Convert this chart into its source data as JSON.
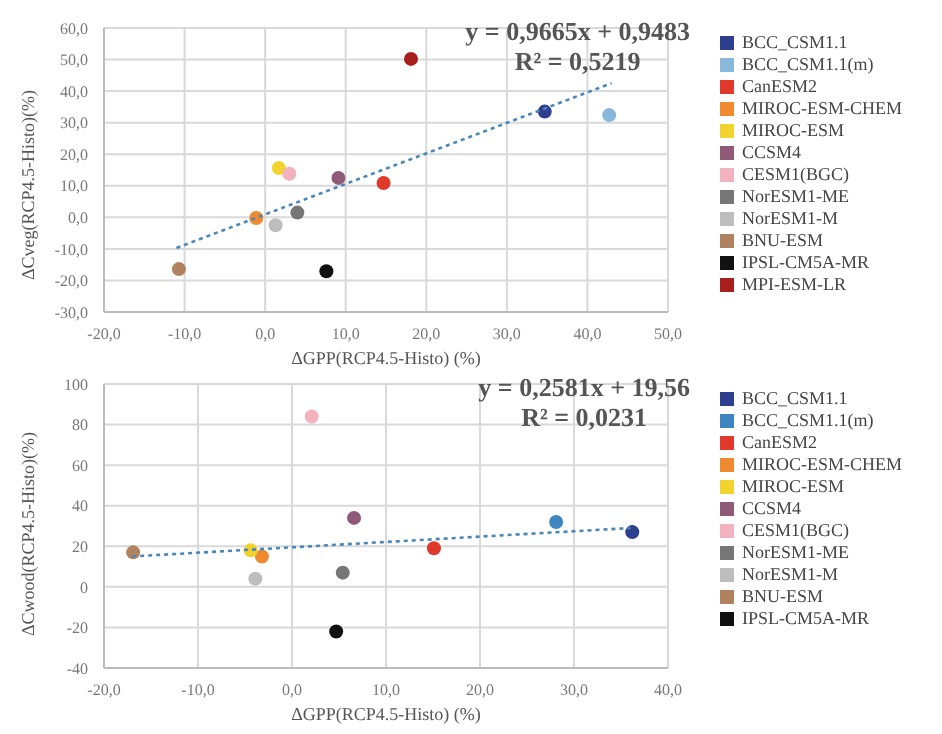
{
  "chart_data": [
    {
      "type": "scatter",
      "xlabel": "ΔGPP(RCP4.5-Histo) (%)",
      "ylabel": "ΔCveg(RCP4.5-Histo)(%)",
      "annotations": [
        "y = 0,9665x + 0,9483",
        "R² = 0,5219"
      ],
      "xlim": [
        -20,
        50
      ],
      "xticks": [
        {
          "value": -20,
          "label": "-20,0"
        },
        {
          "value": -10,
          "label": "-10,0"
        },
        {
          "value": 0,
          "label": "0,0"
        },
        {
          "value": 10,
          "label": "10,0"
        },
        {
          "value": 20,
          "label": "20,0"
        },
        {
          "value": 30,
          "label": "30,0"
        },
        {
          "value": 40,
          "label": "40,0"
        },
        {
          "value": 50,
          "label": "50,0"
        }
      ],
      "ylim": [
        -30,
        60
      ],
      "yticks": [
        {
          "value": -30,
          "label": "-30,0"
        },
        {
          "value": -20,
          "label": "-20,0"
        },
        {
          "value": -10,
          "label": "-10,0"
        },
        {
          "value": 0,
          "label": "0,0"
        },
        {
          "value": 10,
          "label": "10,0"
        },
        {
          "value": 20,
          "label": "20,0"
        },
        {
          "value": 30,
          "label": "30,0"
        },
        {
          "value": 40,
          "label": "40,0"
        },
        {
          "value": 50,
          "label": "50,0"
        },
        {
          "value": 60,
          "label": "60,0"
        }
      ],
      "grid": true,
      "legend": "right",
      "marker": "circle",
      "series": [
        {
          "name": "BCC_CSM1.1",
          "color": "#2e3f8f",
          "x": [
            34.7
          ],
          "values": [
            33.5
          ]
        },
        {
          "name": "BCC_CSM1.1(m)",
          "color": "#8ab8dc",
          "x": [
            42.7
          ],
          "values": [
            32.4
          ]
        },
        {
          "name": "CanESM2",
          "color": "#e0392b",
          "x": [
            14.7
          ],
          "values": [
            10.9
          ]
        },
        {
          "name": "MIROC-ESM-CHEM",
          "color": "#f08a30",
          "x": [
            -1.1
          ],
          "values": [
            -0.2
          ]
        },
        {
          "name": "MIROC-ESM",
          "color": "#f2d22c",
          "x": [
            1.7
          ],
          "values": [
            15.6
          ]
        },
        {
          "name": "CCSM4",
          "color": "#8e5a78",
          "x": [
            9.1
          ],
          "values": [
            12.5
          ]
        },
        {
          "name": "CESM1(BGC)",
          "color": "#f2b3be",
          "x": [
            3.0
          ],
          "values": [
            13.8
          ]
        },
        {
          "name": "NorESM1-ME",
          "color": "#767676",
          "x": [
            4.0
          ],
          "values": [
            1.5
          ]
        },
        {
          "name": "NorESM1-M",
          "color": "#bdbdbd",
          "x": [
            1.3
          ],
          "values": [
            -2.5
          ]
        },
        {
          "name": "BNU-ESM",
          "color": "#b0825f",
          "x": [
            -10.7
          ],
          "values": [
            -16.4
          ]
        },
        {
          "name": "IPSL-CM5A-MR",
          "color": "#111111",
          "x": [
            7.6
          ],
          "values": [
            -17.1
          ]
        },
        {
          "name": "MPI-ESM-LR",
          "color": "#a8201c",
          "x": [
            18.1
          ],
          "values": [
            50.2
          ]
        },
        {
          "type": "line",
          "color": "#4a86b8",
          "line_style": "dotted",
          "marker": "none",
          "x": [
            -11,
            43
          ],
          "values": [
            -9.7,
            42.5
          ]
        }
      ]
    },
    {
      "type": "scatter",
      "xlabel": "ΔGPP(RCP4.5-Histo) (%)",
      "ylabel": "ΔCwood(RCP4.5-Histo)(%)",
      "annotations": [
        "y = 0,2581x + 19,56",
        "R² = 0,0231"
      ],
      "xlim": [
        -20,
        40
      ],
      "xticks": [
        {
          "value": -20,
          "label": "-20,0"
        },
        {
          "value": -10,
          "label": "-10,0"
        },
        {
          "value": 0,
          "label": "0,0"
        },
        {
          "value": 10,
          "label": "10,0"
        },
        {
          "value": 20,
          "label": "20,0"
        },
        {
          "value": 30,
          "label": "30,0"
        },
        {
          "value": 40,
          "label": "40,0"
        }
      ],
      "ylim": [
        -40,
        100
      ],
      "yticks": [
        -40,
        -20,
        0,
        20,
        40,
        60,
        80,
        100
      ],
      "grid": true,
      "legend": "right",
      "marker": "circle",
      "series": [
        {
          "name": "BCC_CSM1.1",
          "color": "#2e3f8f",
          "x": [
            36.2
          ],
          "values": [
            27
          ]
        },
        {
          "name": "BCC_CSM1.1(m)",
          "color": "#3f86c0",
          "x": [
            28.1
          ],
          "values": [
            32
          ]
        },
        {
          "name": "CanESM2",
          "color": "#e0392b",
          "x": [
            15.1
          ],
          "values": [
            19
          ]
        },
        {
          "name": "MIROC-ESM-CHEM",
          "color": "#f08a30",
          "x": [
            -3.2
          ],
          "values": [
            15
          ]
        },
        {
          "name": "MIROC-ESM",
          "color": "#f2d22c",
          "x": [
            -4.4
          ],
          "values": [
            18
          ]
        },
        {
          "name": "CCSM4",
          "color": "#8e5a78",
          "x": [
            6.6
          ],
          "values": [
            34
          ]
        },
        {
          "name": "CESM1(BGC)",
          "color": "#f2b3be",
          "x": [
            2.1
          ],
          "values": [
            84
          ]
        },
        {
          "name": "NorESM1-ME",
          "color": "#767676",
          "x": [
            5.4
          ],
          "values": [
            7
          ]
        },
        {
          "name": "NorESM1-M",
          "color": "#bdbdbd",
          "x": [
            -3.9
          ],
          "values": [
            4
          ]
        },
        {
          "name": "BNU-ESM",
          "color": "#b0825f",
          "x": [
            -16.9
          ],
          "values": [
            17
          ]
        },
        {
          "name": "IPSL-CM5A-MR",
          "color": "#111111",
          "x": [
            4.7
          ],
          "values": [
            -22
          ]
        },
        {
          "type": "line",
          "color": "#4a86b8",
          "line_style": "dotted",
          "marker": "none",
          "x": [
            -17,
            36
          ],
          "values": [
            15,
            29
          ]
        }
      ]
    }
  ]
}
